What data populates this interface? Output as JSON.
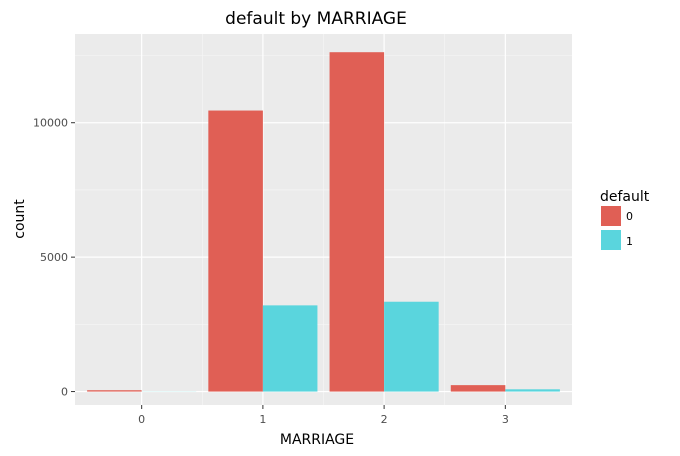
{
  "chart_data": {
    "type": "bar",
    "title": "default by MARRIAGE",
    "xlabel": "MARRIAGE",
    "ylabel": "count",
    "categories": [
      "0",
      "1",
      "2",
      "3"
    ],
    "series": [
      {
        "name": "0",
        "color": "#e05f55",
        "values": [
          49,
          10453,
          12623,
          239
        ]
      },
      {
        "name": "1",
        "color": "#5ad5dd",
        "values": [
          5,
          3206,
          3341,
          84
        ]
      }
    ],
    "yticks": [
      0,
      5000,
      10000
    ],
    "ylim": [
      -500,
      13300
    ],
    "legend": {
      "title": "default",
      "position": "right"
    },
    "grid": true
  }
}
